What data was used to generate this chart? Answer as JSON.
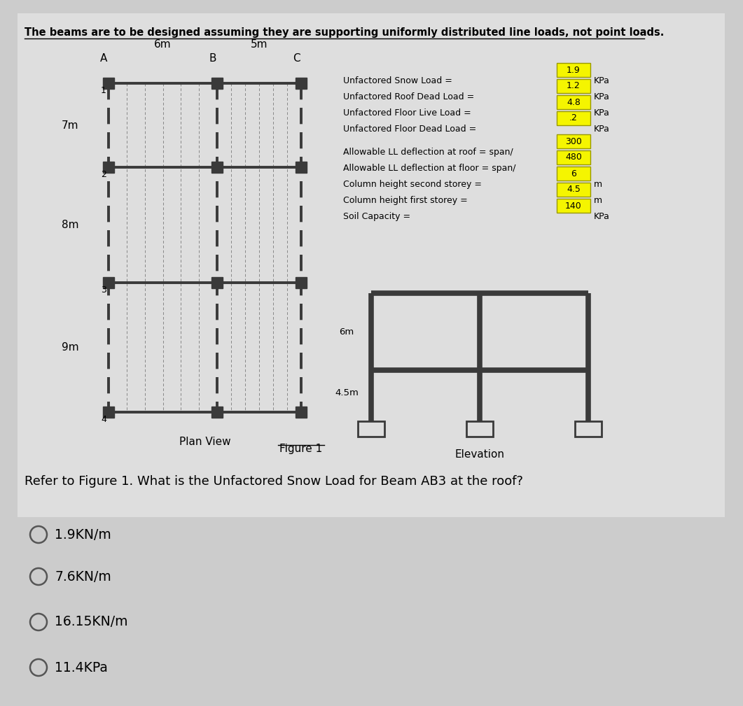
{
  "title": "The beams are to be designed assuming they are supporting uniformly distributed line loads, not point loads.",
  "bg_color": "#cccccc",
  "white_panel_color": "#e0e0e0",
  "plan_view": {
    "cols": [
      "A",
      "B",
      "C"
    ],
    "rows": [
      "1",
      "2",
      "3",
      "4"
    ],
    "span_labels_top": [
      "6m",
      "5m"
    ],
    "row_labels_left": [
      "7m",
      "8m",
      "9m"
    ]
  },
  "info_box": {
    "loads": [
      {
        "label": "Unfactored Snow Load =",
        "value": "1.9",
        "unit": "KPa"
      },
      {
        "label": "Unfactored Roof Dead Load =",
        "value": "1.2",
        "unit": "KPa"
      },
      {
        "label": "Unfactored Floor Live Load =",
        "value": "4.8",
        "unit": "KPa"
      },
      {
        "label": "Unfactored Floor Dead Load =",
        "value": ".2",
        "unit": "KPa"
      }
    ],
    "params": [
      {
        "label": "Allowable LL deflection at roof = span/",
        "value": "300",
        "unit": ""
      },
      {
        "label": "Allowable LL deflection at floor = span/",
        "value": "480",
        "unit": ""
      },
      {
        "label": "Column height second storey =",
        "value": "6",
        "unit": "m"
      },
      {
        "label": "Column height first storey =",
        "value": "4.5",
        "unit": "m"
      },
      {
        "label": "Soil Capacity =",
        "value": "140",
        "unit": "KPa"
      }
    ]
  },
  "elevation_label1": "6m",
  "elevation_label2": "4.5m",
  "question": "Refer to Figure 1. What is the Unfactored Snow Load for Beam AB3 at the roof?",
  "options": [
    {
      "text": "1.9KN/m"
    },
    {
      "text": "7.6KN/m"
    },
    {
      "text": "16.15KN/m"
    },
    {
      "text": "11.4KPa"
    }
  ],
  "figure_label": "Figure 1",
  "plan_view_label": "Plan View",
  "elevation_label": "Elevation",
  "yellow_fill": "#f5f500",
  "beam_color": "#3a3a3a",
  "node_color": "#3a3a3a",
  "secondary_color": "#888888"
}
